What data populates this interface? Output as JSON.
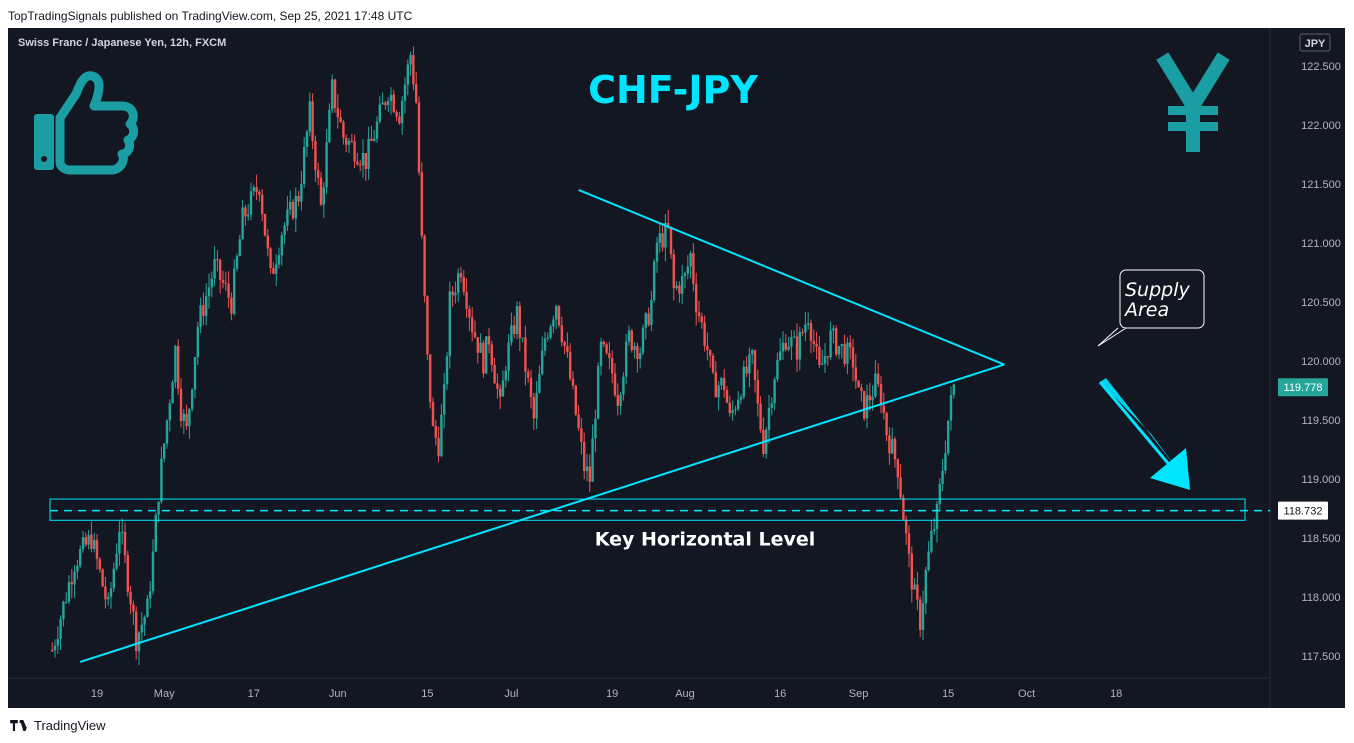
{
  "header": {
    "publish_line": "TopTradingSignals published on TradingView.com, Sep 25, 2021 17:48 UTC"
  },
  "chart_header": {
    "symbol_line": "Swiss Franc / Japanese Yen, 12h, FXCM",
    "currency_badge": "JPY"
  },
  "annotations": {
    "title": "CHF-JPY",
    "key_level_label": "Key Horizontal Level",
    "supply_line1": "Supply",
    "supply_line2": "Area"
  },
  "icons": {
    "thumbs_up": "thumbs-up-icon",
    "yen": "yen-icon"
  },
  "colors": {
    "background": "#131722",
    "up": "#26a69a",
    "down": "#ef5350",
    "annotation": "#00e5ff",
    "last_price_bg": "#26a69a"
  },
  "footer": {
    "brand": "TradingView"
  },
  "chart_data": {
    "type": "candlestick",
    "title": "CHF-JPY",
    "symbol": "Swiss Franc / Japanese Yen, 12h, FXCM",
    "ylim": [
      117.3,
      122.7
    ],
    "y_ticks": [
      "122.500",
      "122.000",
      "121.500",
      "121.000",
      "120.500",
      "120.000",
      "119.500",
      "119.000",
      "118.500",
      "118.000",
      "117.500"
    ],
    "x_ticks": [
      "19",
      "May",
      "17",
      "Jun",
      "15",
      "Jul",
      "19",
      "Aug",
      "16",
      "Sep",
      "15",
      "Oct",
      "18"
    ],
    "x_tick_days": [
      0,
      12,
      28,
      43,
      59,
      74,
      92,
      105,
      122,
      136,
      152,
      166,
      182
    ],
    "last_price": "119.778",
    "key_level_price": "118.732",
    "key_level": {
      "low": 118.65,
      "high": 118.83
    },
    "uptrend_line": {
      "from": {
        "day": -3,
        "price": 117.45
      },
      "to": {
        "day": 162,
        "price": 119.97
      }
    },
    "downtrend_line": {
      "from": {
        "day": 86,
        "price": 121.45
      },
      "to": {
        "day": 162,
        "price": 119.97
      }
    },
    "path": [
      {
        "day": -8,
        "price": 117.55
      },
      {
        "day": -4,
        "price": 118.3
      },
      {
        "day": -1,
        "price": 118.5
      },
      {
        "day": 2,
        "price": 117.9
      },
      {
        "day": 4,
        "price": 118.6
      },
      {
        "day": 6,
        "price": 118.0
      },
      {
        "day": 7,
        "price": 117.65
      },
      {
        "day": 9,
        "price": 117.9
      },
      {
        "day": 10,
        "price": 118.35
      },
      {
        "day": 11,
        "price": 118.9
      },
      {
        "day": 13,
        "price": 119.7
      },
      {
        "day": 14,
        "price": 120.1
      },
      {
        "day": 15,
        "price": 119.6
      },
      {
        "day": 16,
        "price": 119.4
      },
      {
        "day": 18,
        "price": 120.3
      },
      {
        "day": 21,
        "price": 120.8
      },
      {
        "day": 24,
        "price": 120.5
      },
      {
        "day": 26,
        "price": 121.2
      },
      {
        "day": 29,
        "price": 121.5
      },
      {
        "day": 31,
        "price": 120.7
      },
      {
        "day": 33,
        "price": 121.1
      },
      {
        "day": 36,
        "price": 121.4
      },
      {
        "day": 38,
        "price": 122.1
      },
      {
        "day": 40,
        "price": 121.3
      },
      {
        "day": 42,
        "price": 122.3
      },
      {
        "day": 44,
        "price": 121.9
      },
      {
        "day": 46,
        "price": 121.8
      },
      {
        "day": 48,
        "price": 121.7
      },
      {
        "day": 50,
        "price": 122.0
      },
      {
        "day": 52,
        "price": 122.3
      },
      {
        "day": 54,
        "price": 122.1
      },
      {
        "day": 56,
        "price": 122.6
      },
      {
        "day": 57,
        "price": 122.2
      },
      {
        "day": 58,
        "price": 121.0
      },
      {
        "day": 59,
        "price": 120.0
      },
      {
        "day": 60,
        "price": 119.4
      },
      {
        "day": 61,
        "price": 119.3
      },
      {
        "day": 62,
        "price": 119.7
      },
      {
        "day": 63,
        "price": 120.5
      },
      {
        "day": 65,
        "price": 120.8
      },
      {
        "day": 67,
        "price": 120.3
      },
      {
        "day": 69,
        "price": 120.0
      },
      {
        "day": 70,
        "price": 120.2
      },
      {
        "day": 72,
        "price": 119.6
      },
      {
        "day": 73,
        "price": 120.0
      },
      {
        "day": 75,
        "price": 120.4
      },
      {
        "day": 77,
        "price": 119.8
      },
      {
        "day": 78,
        "price": 119.5
      },
      {
        "day": 80,
        "price": 120.2
      },
      {
        "day": 82,
        "price": 120.5
      },
      {
        "day": 84,
        "price": 120.0
      },
      {
        "day": 85,
        "price": 119.7
      },
      {
        "day": 87,
        "price": 119.1
      },
      {
        "day": 88,
        "price": 119.0
      },
      {
        "day": 89,
        "price": 119.6
      },
      {
        "day": 90,
        "price": 120.1
      },
      {
        "day": 92,
        "price": 119.9
      },
      {
        "day": 93,
        "price": 119.7
      },
      {
        "day": 95,
        "price": 120.2
      },
      {
        "day": 97,
        "price": 120.1
      },
      {
        "day": 99,
        "price": 120.5
      },
      {
        "day": 100,
        "price": 121.0
      },
      {
        "day": 102,
        "price": 121.1
      },
      {
        "day": 103,
        "price": 120.6
      },
      {
        "day": 105,
        "price": 120.7
      },
      {
        "day": 106,
        "price": 120.9
      },
      {
        "day": 107,
        "price": 120.5
      },
      {
        "day": 109,
        "price": 120.1
      },
      {
        "day": 110,
        "price": 119.8
      },
      {
        "day": 112,
        "price": 119.8
      },
      {
        "day": 113,
        "price": 119.5
      },
      {
        "day": 115,
        "price": 119.8
      },
      {
        "day": 117,
        "price": 120.0
      },
      {
        "day": 118,
        "price": 119.6
      },
      {
        "day": 119,
        "price": 119.3
      },
      {
        "day": 121,
        "price": 119.9
      },
      {
        "day": 123,
        "price": 120.2
      },
      {
        "day": 125,
        "price": 120.1
      },
      {
        "day": 127,
        "price": 120.4
      },
      {
        "day": 129,
        "price": 119.9
      },
      {
        "day": 131,
        "price": 120.2
      },
      {
        "day": 133,
        "price": 120.1
      },
      {
        "day": 135,
        "price": 120.0
      },
      {
        "day": 136,
        "price": 119.7
      },
      {
        "day": 137,
        "price": 119.6
      },
      {
        "day": 139,
        "price": 119.8
      },
      {
        "day": 140,
        "price": 119.7
      },
      {
        "day": 141,
        "price": 119.4
      },
      {
        "day": 143,
        "price": 119.1
      },
      {
        "day": 144,
        "price": 118.7
      },
      {
        "day": 145,
        "price": 118.3
      },
      {
        "day": 146,
        "price": 118.0
      },
      {
        "day": 147,
        "price": 117.8
      },
      {
        "day": 148,
        "price": 118.2
      },
      {
        "day": 149,
        "price": 118.5
      },
      {
        "day": 150,
        "price": 118.7
      },
      {
        "day": 151,
        "price": 119.1
      },
      {
        "day": 152,
        "price": 119.5
      },
      {
        "day": 153,
        "price": 119.78
      }
    ]
  }
}
